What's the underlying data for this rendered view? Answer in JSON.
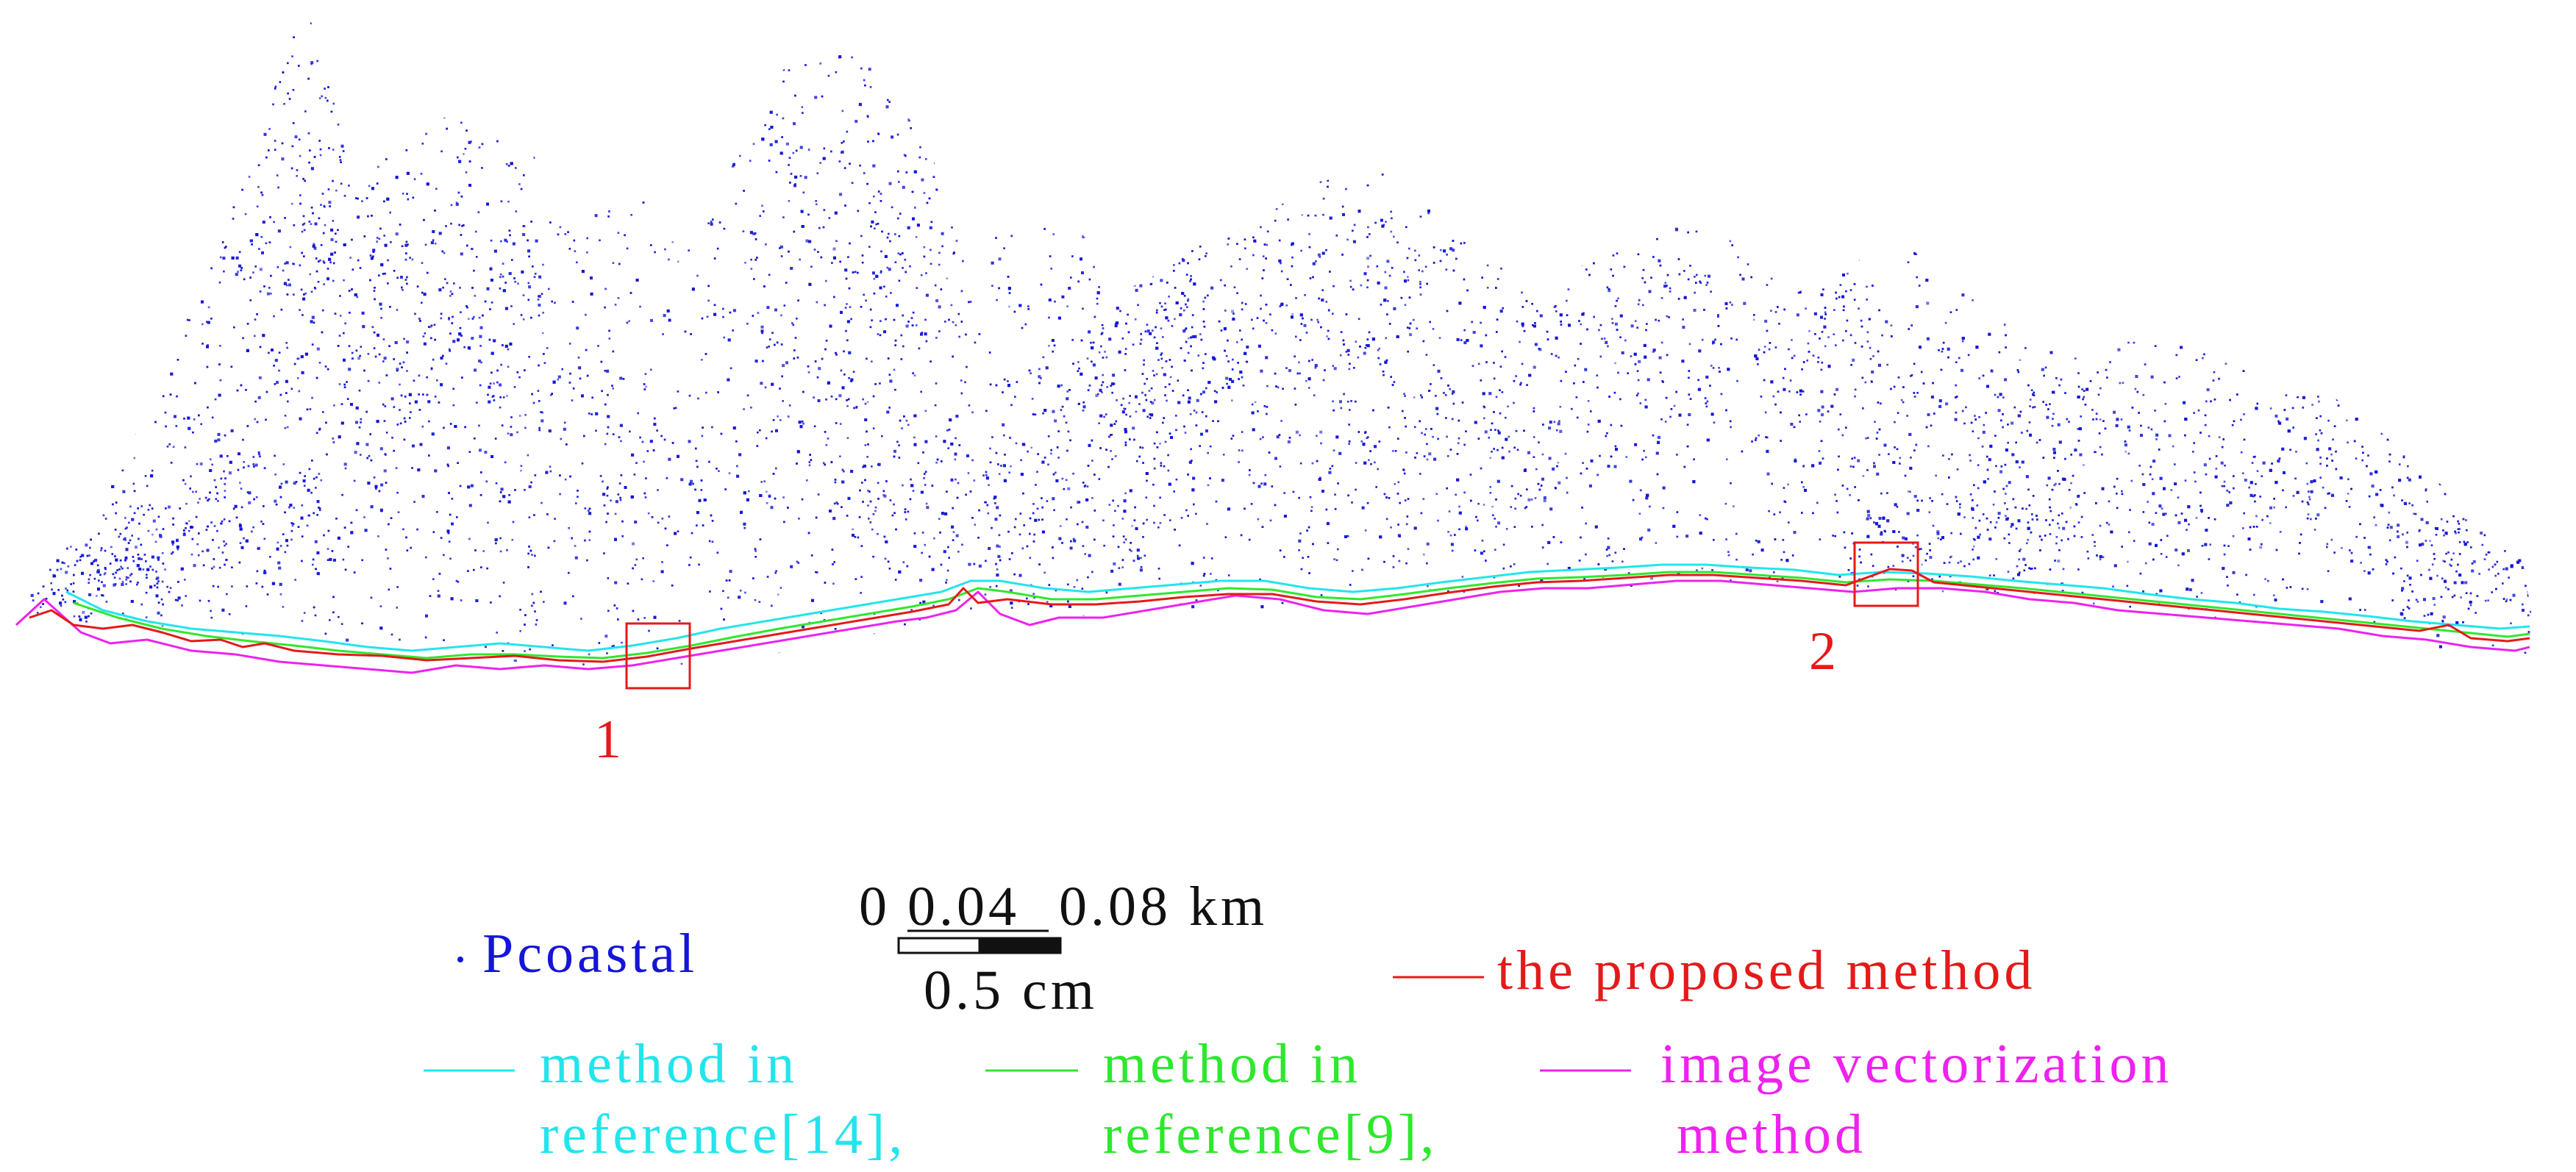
{
  "map": {
    "colors": {
      "points": "#1515d6",
      "proposed": "#e41a1a",
      "ref14": "#22e5ec",
      "ref9": "#2ee82e",
      "vectorization": "#ee22ee",
      "marker_box": "#e41a1a",
      "text": "#111111"
    },
    "regions": [
      {
        "id": "region-1",
        "label": "1"
      },
      {
        "id": "region-2",
        "label": "2"
      }
    ]
  },
  "legend": {
    "points_label": "Pcoastal",
    "proposed_label": "the proposed method",
    "ref14_line1": "method in",
    "ref14_line2": "reference[14],",
    "ref9_line1": "method in",
    "ref9_line2": "reference[9],",
    "vector_line1": "image vectorization",
    "vector_line2": "method"
  },
  "scale_bar": {
    "tick_0": "0",
    "tick_1": "0.04",
    "tick_2": "0.08 km",
    "ratio_label": "0.5 cm"
  }
}
